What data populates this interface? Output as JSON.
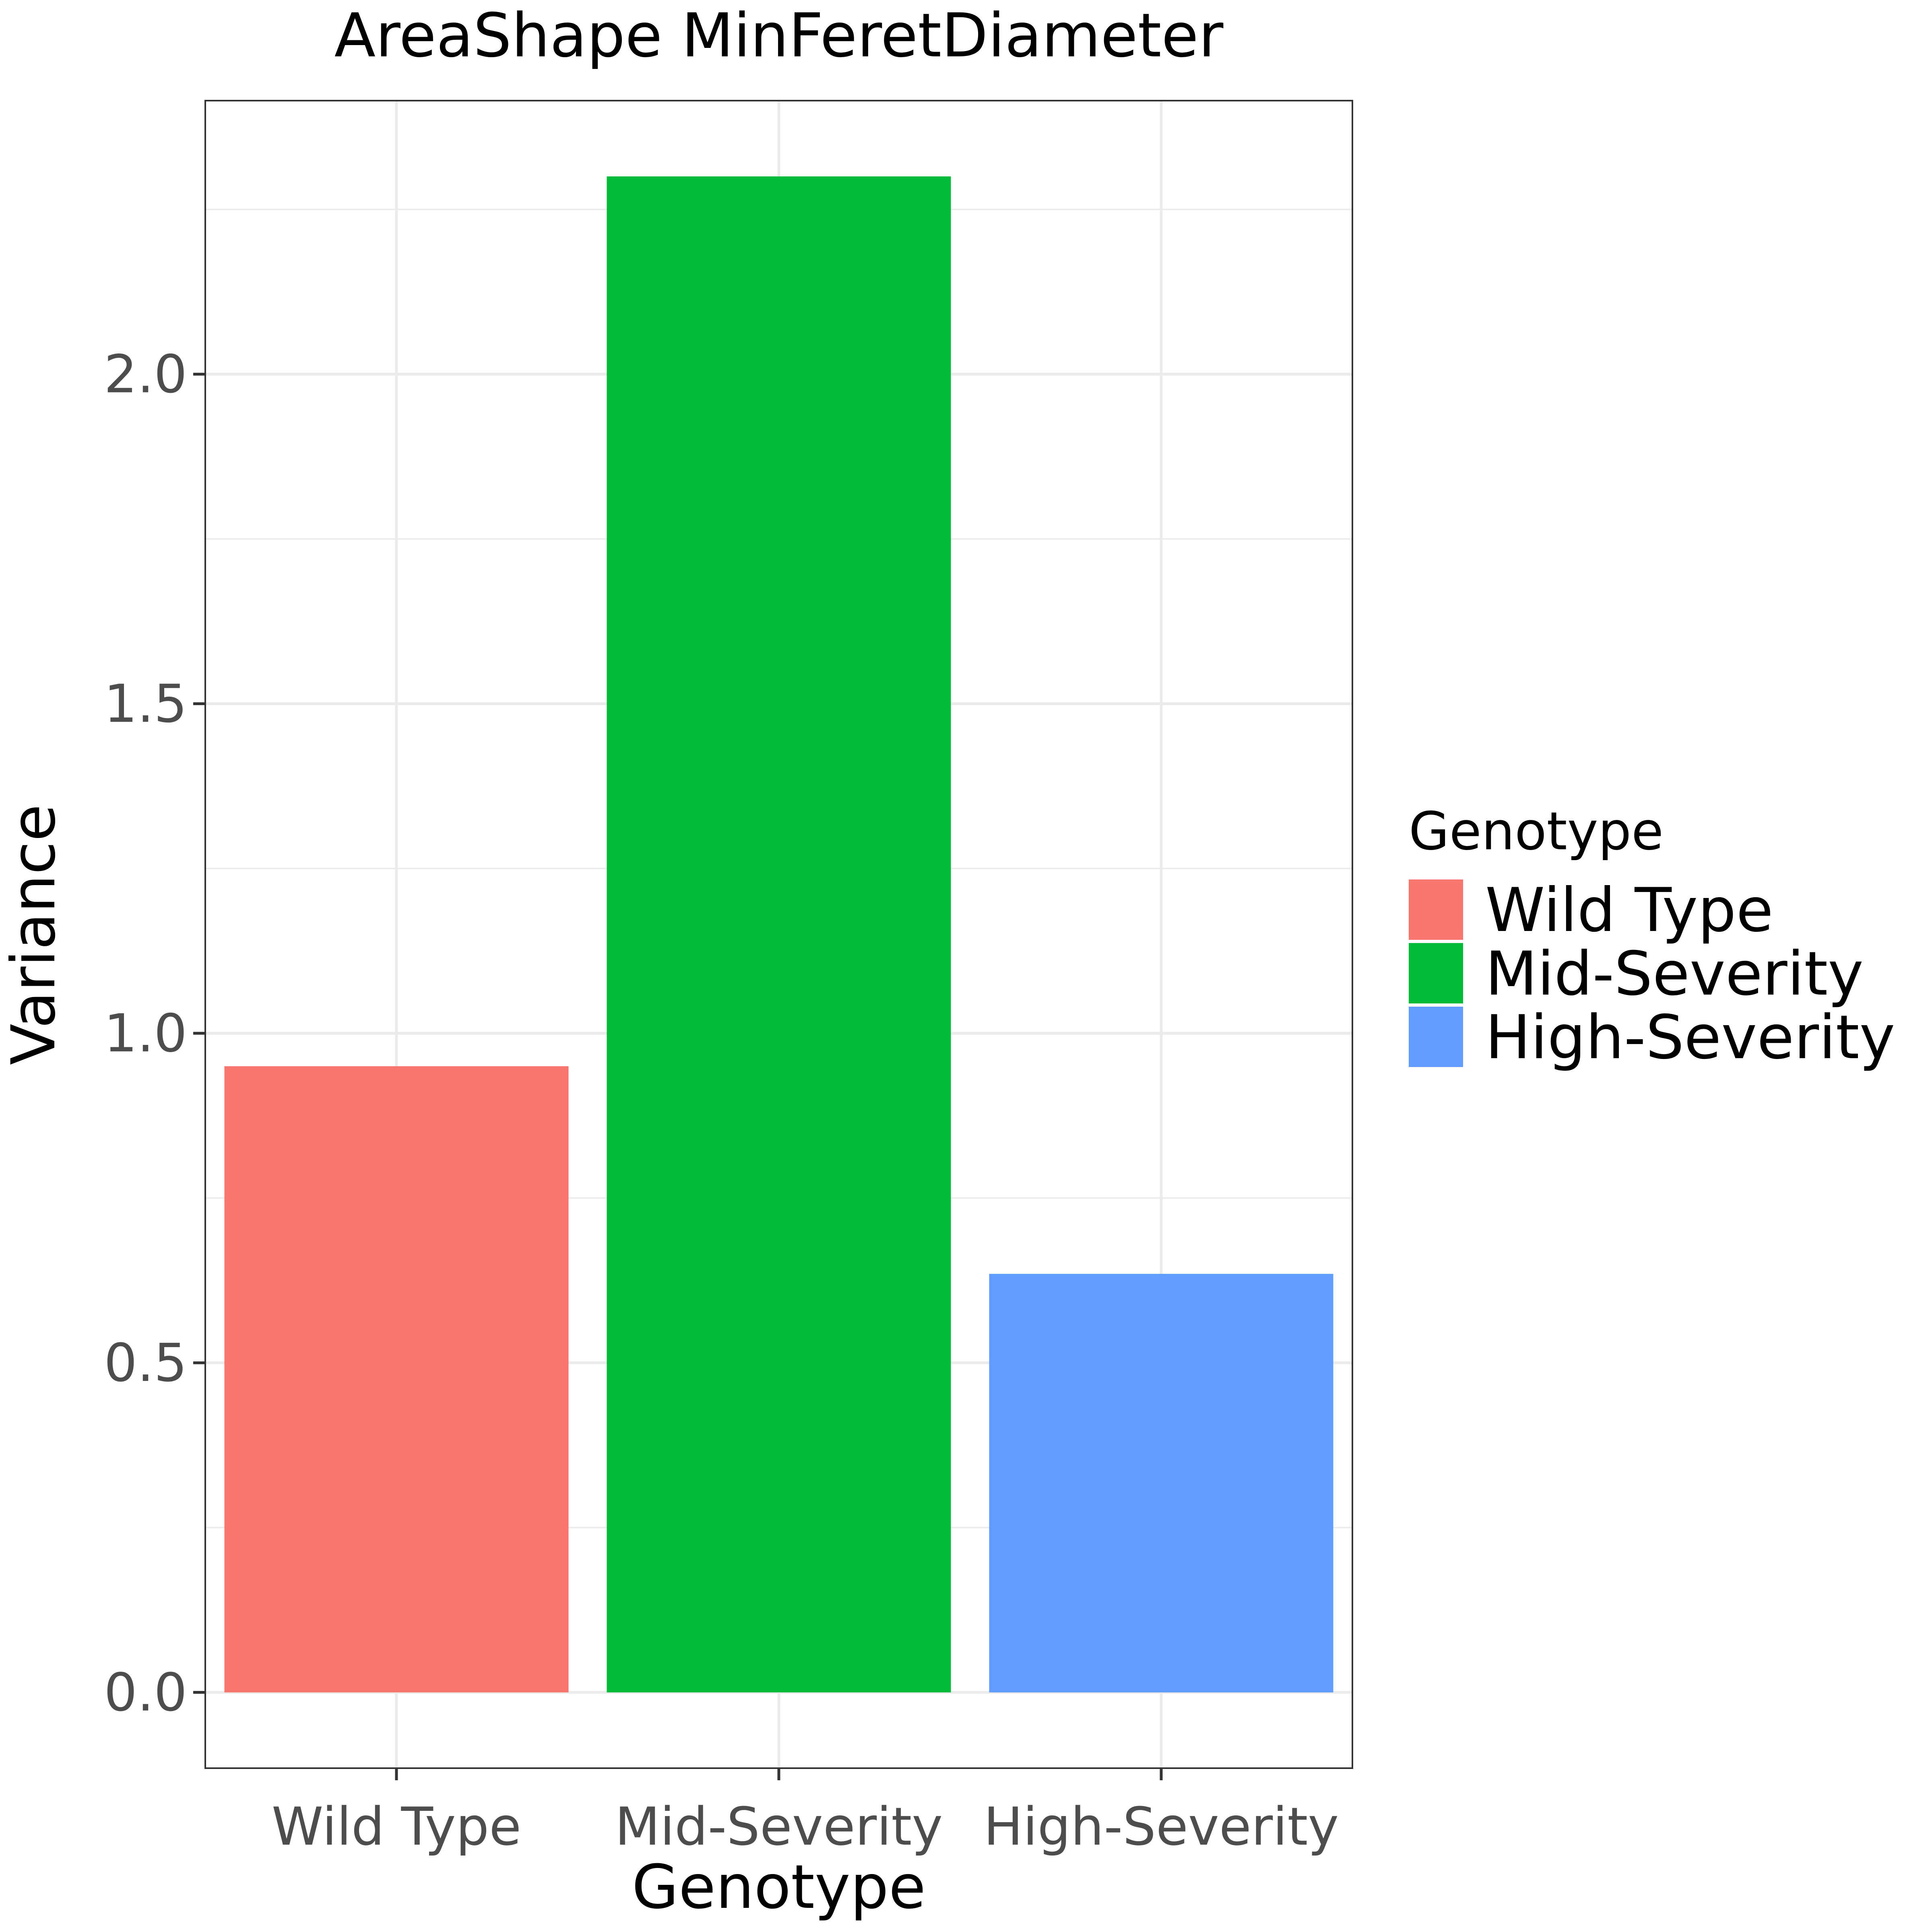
{
  "chart_data": {
    "type": "bar",
    "title": "AreaShape MinFeretDiameter",
    "xlabel": "Genotype",
    "ylabel": "Variance",
    "categories": [
      "Wild Type",
      "Mid-Severity",
      "High-Severity"
    ],
    "values": [
      0.95,
      2.3,
      0.635
    ],
    "colors": [
      "#F8766D",
      "#00BA38",
      "#619CFF"
    ],
    "ylim": [
      -0.115,
      2.415
    ],
    "yticks": [
      0.0,
      0.5,
      1.0,
      1.5,
      2.0
    ],
    "ytick_labels": [
      "0.0",
      "0.5",
      "1.0",
      "1.5",
      "2.0"
    ],
    "grid": true,
    "legend": {
      "title": "Genotype",
      "position": "right",
      "entries": [
        "Wild Type",
        "Mid-Severity",
        "High-Severity"
      ]
    }
  }
}
